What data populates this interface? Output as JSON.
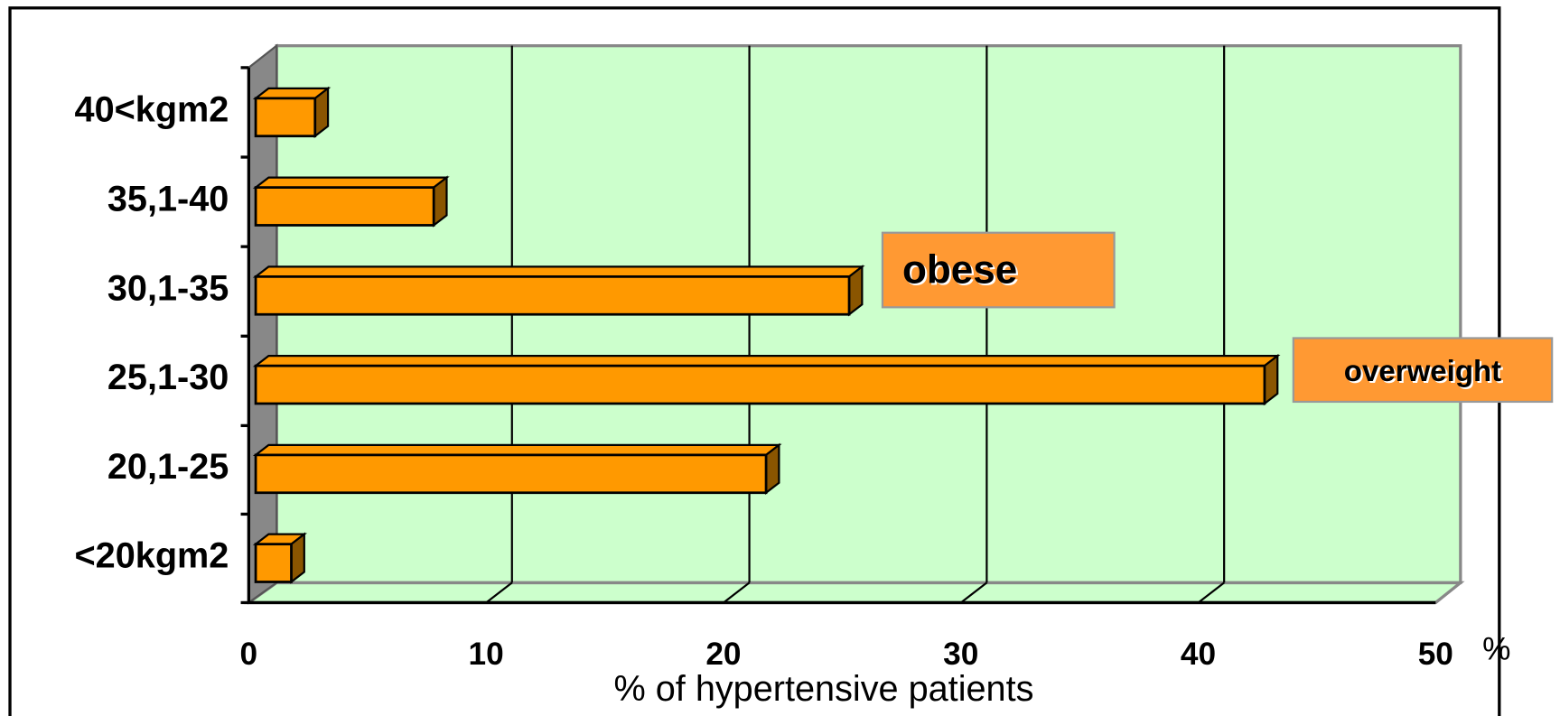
{
  "chart_data": {
    "type": "bar3d_horizontal",
    "categories": [
      "<20kgm2",
      "20,1-25",
      "25,1-30",
      "30,1-35",
      "35,1-40",
      "40<kgm2"
    ],
    "values": [
      1.5,
      21.5,
      42.5,
      25,
      7.5,
      2.5
    ],
    "color": "#ff9900",
    "side_color": "#8a5500",
    "wall_color": "#ccffcc",
    "xlim": [
      0,
      50
    ],
    "xticks": [
      0,
      10,
      20,
      30,
      40,
      50
    ],
    "grid": true,
    "x_unit": "%",
    "xlabel": "% of hypertensive patients",
    "annotations": [
      "obese",
      "overweight"
    ]
  }
}
